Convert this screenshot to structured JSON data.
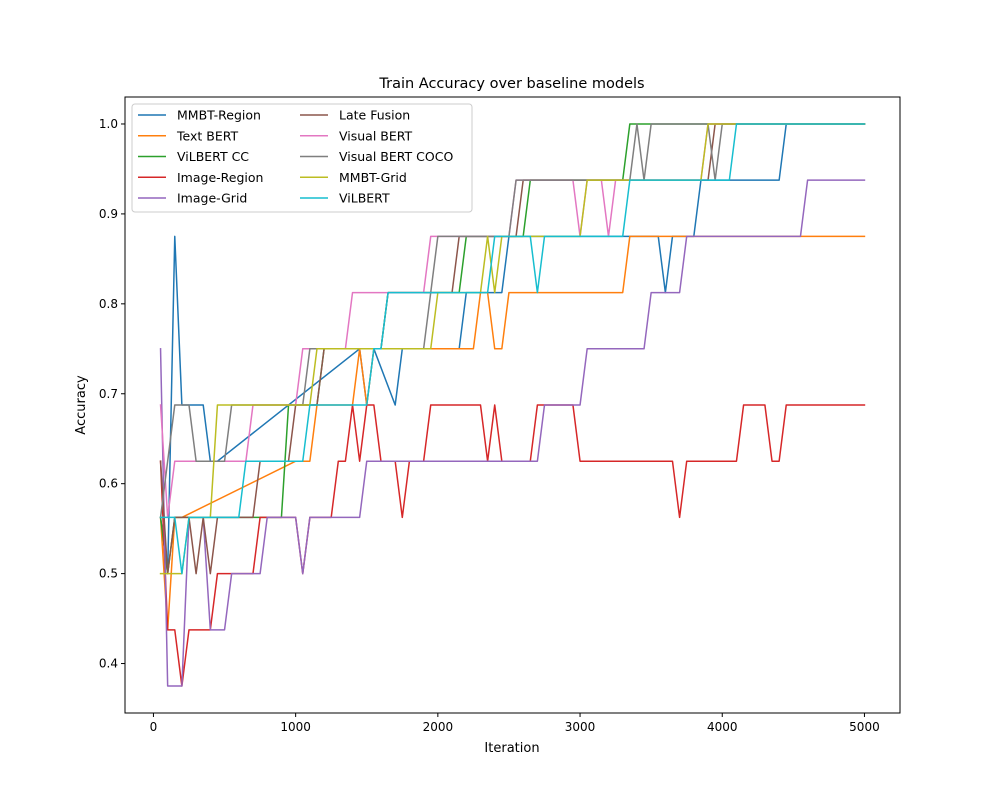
{
  "chart_data": {
    "type": "line",
    "title": "Train Accuracy over baseline models",
    "xlabel": "Iteration",
    "ylabel": "Accuracy",
    "xlim": [
      -200,
      5250
    ],
    "ylim": [
      0.345,
      1.03
    ],
    "xticks": [
      0,
      1000,
      2000,
      3000,
      4000,
      5000
    ],
    "xtick_labels": [
      "0",
      "1000",
      "2000",
      "3000",
      "4000",
      "5000"
    ],
    "yticks": [
      0.4,
      0.5,
      0.6,
      0.7,
      0.8,
      0.9,
      1.0
    ],
    "ytick_labels": [
      "0.4",
      "0.5",
      "0.6",
      "0.7",
      "0.8",
      "0.9",
      "1.0"
    ],
    "grid": false,
    "legend_position": "upper-left",
    "legend_columns": 2,
    "series": [
      {
        "name": "MMBT-Region",
        "color": "#1f77b4",
        "points": [
          [
            50,
            0.5625
          ],
          [
            100,
            0.5
          ],
          [
            150,
            0.875
          ],
          [
            200,
            0.6875
          ],
          [
            350,
            0.6875
          ],
          [
            400,
            0.625
          ],
          [
            450,
            0.625
          ],
          [
            1450,
            0.75
          ],
          [
            1500,
            0.6875
          ],
          [
            1550,
            0.75
          ],
          [
            1700,
            0.6875
          ],
          [
            1750,
            0.75
          ],
          [
            2150,
            0.75
          ],
          [
            2200,
            0.8125
          ],
          [
            2450,
            0.8125
          ],
          [
            2500,
            0.875
          ],
          [
            3550,
            0.875
          ],
          [
            3600,
            0.8125
          ],
          [
            3650,
            0.875
          ],
          [
            3800,
            0.875
          ],
          [
            3850,
            0.9375
          ],
          [
            4400,
            0.9375
          ],
          [
            4450,
            1.0
          ],
          [
            5000,
            1.0
          ]
        ]
      },
      {
        "name": "Text BERT",
        "color": "#ff7f0e",
        "points": [
          [
            50,
            0.5625
          ],
          [
            100,
            0.4375
          ],
          [
            150,
            0.5625
          ],
          [
            200,
            0.5625
          ],
          [
            1000,
            0.625
          ],
          [
            1100,
            0.625
          ],
          [
            1150,
            0.6875
          ],
          [
            1400,
            0.6875
          ],
          [
            1450,
            0.75
          ],
          [
            1500,
            0.6875
          ],
          [
            1550,
            0.75
          ],
          [
            2250,
            0.75
          ],
          [
            2300,
            0.8125
          ],
          [
            2350,
            0.8125
          ],
          [
            2400,
            0.75
          ],
          [
            2450,
            0.75
          ],
          [
            2500,
            0.8125
          ],
          [
            3300,
            0.8125
          ],
          [
            3350,
            0.875
          ],
          [
            5000,
            0.875
          ]
        ]
      },
      {
        "name": "ViLBERT CC",
        "color": "#2ca02c",
        "points": [
          [
            50,
            0.5625
          ],
          [
            100,
            0.5
          ],
          [
            150,
            0.5625
          ],
          [
            900,
            0.5625
          ],
          [
            950,
            0.6875
          ],
          [
            1150,
            0.6875
          ],
          [
            1200,
            0.75
          ],
          [
            1600,
            0.75
          ],
          [
            1650,
            0.8125
          ],
          [
            2150,
            0.8125
          ],
          [
            2200,
            0.875
          ],
          [
            2600,
            0.875
          ],
          [
            2650,
            0.9375
          ],
          [
            3300,
            0.9375
          ],
          [
            3350,
            1.0
          ],
          [
            5000,
            1.0
          ]
        ]
      },
      {
        "name": "Image-Region",
        "color": "#d62728",
        "points": [
          [
            50,
            0.625
          ],
          [
            100,
            0.4375
          ],
          [
            150,
            0.4375
          ],
          [
            200,
            0.375
          ],
          [
            250,
            0.4375
          ],
          [
            400,
            0.4375
          ],
          [
            450,
            0.5
          ],
          [
            700,
            0.5
          ],
          [
            750,
            0.5625
          ],
          [
            1000,
            0.5625
          ],
          [
            1050,
            0.5
          ],
          [
            1100,
            0.5625
          ],
          [
            1250,
            0.5625
          ],
          [
            1300,
            0.625
          ],
          [
            1350,
            0.625
          ],
          [
            1400,
            0.6875
          ],
          [
            1450,
            0.625
          ],
          [
            1500,
            0.6875
          ],
          [
            1550,
            0.6875
          ],
          [
            1600,
            0.625
          ],
          [
            1700,
            0.625
          ],
          [
            1750,
            0.5625
          ],
          [
            1800,
            0.625
          ],
          [
            1900,
            0.625
          ],
          [
            1950,
            0.6875
          ],
          [
            2300,
            0.6875
          ],
          [
            2350,
            0.625
          ],
          [
            2400,
            0.6875
          ],
          [
            2450,
            0.625
          ],
          [
            2650,
            0.625
          ],
          [
            2700,
            0.6875
          ],
          [
            2950,
            0.6875
          ],
          [
            3000,
            0.625
          ],
          [
            3650,
            0.625
          ],
          [
            3700,
            0.5625
          ],
          [
            3750,
            0.625
          ],
          [
            4100,
            0.625
          ],
          [
            4150,
            0.6875
          ],
          [
            4300,
            0.6875
          ],
          [
            4350,
            0.625
          ],
          [
            4400,
            0.625
          ],
          [
            4450,
            0.6875
          ],
          [
            5000,
            0.6875
          ]
        ]
      },
      {
        "name": "Image-Grid",
        "color": "#9467bd",
        "points": [
          [
            50,
            0.75
          ],
          [
            100,
            0.375
          ],
          [
            200,
            0.375
          ],
          [
            250,
            0.5625
          ],
          [
            350,
            0.5625
          ],
          [
            400,
            0.4375
          ],
          [
            500,
            0.4375
          ],
          [
            550,
            0.5
          ],
          [
            750,
            0.5
          ],
          [
            800,
            0.5625
          ],
          [
            1000,
            0.5625
          ],
          [
            1050,
            0.5
          ],
          [
            1100,
            0.5625
          ],
          [
            1450,
            0.5625
          ],
          [
            1500,
            0.625
          ],
          [
            2700,
            0.625
          ],
          [
            2750,
            0.6875
          ],
          [
            3000,
            0.6875
          ],
          [
            3050,
            0.75
          ],
          [
            3450,
            0.75
          ],
          [
            3500,
            0.8125
          ],
          [
            3700,
            0.8125
          ],
          [
            3750,
            0.875
          ],
          [
            4550,
            0.875
          ],
          [
            4600,
            0.9375
          ],
          [
            5000,
            0.9375
          ]
        ]
      },
      {
        "name": "Late Fusion",
        "color": "#8c564b",
        "points": [
          [
            50,
            0.625
          ],
          [
            100,
            0.5
          ],
          [
            150,
            0.5625
          ],
          [
            250,
            0.5625
          ],
          [
            300,
            0.5
          ],
          [
            350,
            0.5625
          ],
          [
            400,
            0.5
          ],
          [
            450,
            0.5625
          ],
          [
            700,
            0.5625
          ],
          [
            750,
            0.625
          ],
          [
            950,
            0.625
          ],
          [
            1000,
            0.6875
          ],
          [
            1150,
            0.6875
          ],
          [
            1200,
            0.75
          ],
          [
            1600,
            0.75
          ],
          [
            1650,
            0.8125
          ],
          [
            2100,
            0.8125
          ],
          [
            2150,
            0.875
          ],
          [
            2550,
            0.875
          ],
          [
            2600,
            0.9375
          ],
          [
            3900,
            0.9375
          ],
          [
            3950,
            1.0
          ],
          [
            5000,
            1.0
          ]
        ]
      },
      {
        "name": "Visual BERT",
        "color": "#e377c2",
        "points": [
          [
            50,
            0.6875
          ],
          [
            100,
            0.5625
          ],
          [
            150,
            0.625
          ],
          [
            650,
            0.625
          ],
          [
            700,
            0.6875
          ],
          [
            1000,
            0.6875
          ],
          [
            1050,
            0.75
          ],
          [
            1350,
            0.75
          ],
          [
            1400,
            0.8125
          ],
          [
            1900,
            0.8125
          ],
          [
            1950,
            0.875
          ],
          [
            2500,
            0.875
          ],
          [
            2550,
            0.9375
          ],
          [
            2950,
            0.9375
          ],
          [
            3000,
            0.875
          ],
          [
            3050,
            0.9375
          ],
          [
            3150,
            0.9375
          ],
          [
            3200,
            0.875
          ],
          [
            3250,
            0.9375
          ],
          [
            3850,
            0.9375
          ],
          [
            3900,
            1.0
          ],
          [
            5000,
            1.0
          ]
        ]
      },
      {
        "name": "Visual BERT COCO",
        "color": "#7f7f7f",
        "points": [
          [
            50,
            0.5625
          ],
          [
            100,
            0.625
          ],
          [
            150,
            0.6875
          ],
          [
            250,
            0.6875
          ],
          [
            300,
            0.625
          ],
          [
            500,
            0.625
          ],
          [
            550,
            0.6875
          ],
          [
            1050,
            0.6875
          ],
          [
            1100,
            0.75
          ],
          [
            1900,
            0.75
          ],
          [
            1950,
            0.8125
          ],
          [
            2000,
            0.875
          ],
          [
            2500,
            0.875
          ],
          [
            2550,
            0.9375
          ],
          [
            3350,
            0.9375
          ],
          [
            3400,
            1.0
          ],
          [
            3450,
            0.9375
          ],
          [
            3500,
            1.0
          ],
          [
            3900,
            1.0
          ],
          [
            3950,
            0.9375
          ],
          [
            4000,
            1.0
          ],
          [
            5000,
            1.0
          ]
        ]
      },
      {
        "name": "MMBT-Grid",
        "color": "#bcbd22",
        "points": [
          [
            50,
            0.5
          ],
          [
            200,
            0.5
          ],
          [
            250,
            0.5625
          ],
          [
            400,
            0.5625
          ],
          [
            450,
            0.6875
          ],
          [
            1100,
            0.6875
          ],
          [
            1150,
            0.75
          ],
          [
            1950,
            0.75
          ],
          [
            2000,
            0.8125
          ],
          [
            2300,
            0.8125
          ],
          [
            2350,
            0.875
          ],
          [
            2400,
            0.8125
          ],
          [
            2450,
            0.875
          ],
          [
            3000,
            0.875
          ],
          [
            3050,
            0.9375
          ],
          [
            3850,
            0.9375
          ],
          [
            3900,
            1.0
          ],
          [
            5000,
            1.0
          ]
        ]
      },
      {
        "name": "ViLBERT",
        "color": "#17becf",
        "points": [
          [
            50,
            0.5625
          ],
          [
            150,
            0.5625
          ],
          [
            200,
            0.5
          ],
          [
            250,
            0.5625
          ],
          [
            600,
            0.5625
          ],
          [
            650,
            0.625
          ],
          [
            1050,
            0.625
          ],
          [
            1100,
            0.6875
          ],
          [
            1500,
            0.6875
          ],
          [
            1550,
            0.75
          ],
          [
            1600,
            0.75
          ],
          [
            1650,
            0.8125
          ],
          [
            2350,
            0.8125
          ],
          [
            2400,
            0.875
          ],
          [
            2650,
            0.875
          ],
          [
            2700,
            0.8125
          ],
          [
            2750,
            0.875
          ],
          [
            3300,
            0.875
          ],
          [
            3350,
            0.9375
          ],
          [
            4050,
            0.9375
          ],
          [
            4100,
            1.0
          ],
          [
            5000,
            1.0
          ]
        ]
      }
    ]
  }
}
